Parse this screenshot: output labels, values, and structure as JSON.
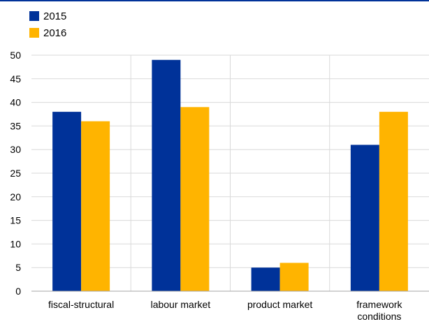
{
  "chart_data": {
    "type": "bar",
    "categories": [
      "fiscal-structural",
      "labour market",
      "product market",
      "framework conditions"
    ],
    "category_lines": [
      [
        "fiscal-structural"
      ],
      [
        "labour market"
      ],
      [
        "product market"
      ],
      [
        "framework",
        "conditions"
      ]
    ],
    "series": [
      {
        "name": "2015",
        "values": [
          38,
          49,
          5,
          31
        ],
        "color": "#003299"
      },
      {
        "name": "2016",
        "values": [
          36,
          39,
          6,
          38
        ],
        "color": "#ffb400"
      }
    ],
    "ylim": [
      0,
      50
    ],
    "yticks": [
      0,
      5,
      10,
      15,
      20,
      25,
      30,
      35,
      40,
      45,
      50
    ],
    "title": "",
    "xlabel": "",
    "ylabel": "",
    "grid": "horizontal",
    "legend_position": "top-left",
    "colors": {
      "top_rule": "#003299",
      "grid": "#d9d9d9",
      "axis": "#a6a6a6"
    }
  }
}
